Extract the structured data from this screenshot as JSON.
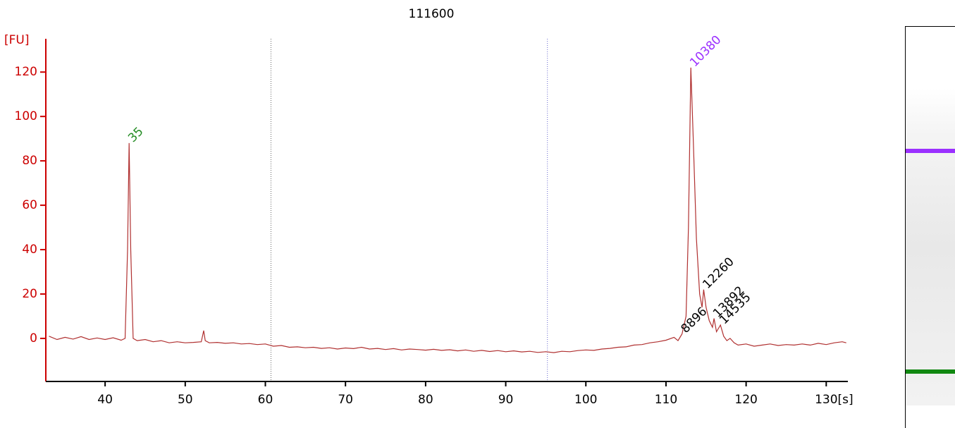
{
  "chart_data": {
    "type": "line",
    "title": "111600",
    "ylabel": "[FU]",
    "xlabel": "[s]",
    "color": "#b03030",
    "axis_color": "#cc0000",
    "xlim": [
      32.6,
      132.7
    ],
    "ylim": [
      -19.4,
      135
    ],
    "xticks": [
      40,
      50,
      60,
      70,
      80,
      90,
      100,
      110,
      120,
      130
    ],
    "yticks": [
      0,
      20,
      40,
      60,
      80,
      100,
      120
    ],
    "markers": [
      {
        "x": 60.7,
        "color": "#666666"
      },
      {
        "x": 95.2,
        "color": "#6a6ad0"
      }
    ],
    "x": [
      33,
      34,
      35,
      36,
      37,
      38,
      39,
      40,
      41,
      42,
      42.5,
      42.8,
      43,
      43.2,
      43.5,
      44,
      45,
      46,
      47,
      48,
      49,
      50,
      51,
      52,
      52.3,
      52.5,
      53,
      54,
      55,
      56,
      57,
      58,
      59,
      60,
      61,
      62,
      63,
      64,
      65,
      66,
      67,
      68,
      69,
      70,
      71,
      72,
      73,
      74,
      75,
      76,
      77,
      78,
      79,
      80,
      81,
      82,
      83,
      84,
      85,
      86,
      87,
      88,
      89,
      90,
      91,
      92,
      93,
      94,
      95,
      96,
      97,
      98,
      99,
      100,
      101,
      102,
      103,
      104,
      105,
      106,
      107,
      108,
      109,
      110,
      111,
      111.5,
      112,
      112.5,
      112.8,
      113.1,
      113.4,
      113.8,
      114.2,
      114.5,
      114.7,
      115,
      115.4,
      115.8,
      116,
      116.3,
      116.8,
      117.2,
      117.6,
      118,
      118.5,
      119,
      120,
      121,
      122,
      123,
      124,
      125,
      126,
      127,
      128,
      129,
      130,
      131,
      132,
      132.5
    ],
    "values": [
      1,
      -0.5,
      0.5,
      -0.3,
      0.8,
      -0.5,
      0.2,
      -0.5,
      0.3,
      -0.8,
      0,
      40,
      88,
      40,
      0,
      -1,
      -0.5,
      -1.5,
      -1,
      -2,
      -1.5,
      -2,
      -1.8,
      -1.5,
      3.5,
      -1,
      -2,
      -1.8,
      -2.2,
      -2,
      -2.5,
      -2.3,
      -2.8,
      -2.5,
      -3.5,
      -3.2,
      -4,
      -3.8,
      -4.2,
      -4,
      -4.5,
      -4.2,
      -4.8,
      -4.3,
      -4.6,
      -4,
      -4.8,
      -4.5,
      -5,
      -4.6,
      -5.2,
      -4.8,
      -5,
      -5.3,
      -4.9,
      -5.4,
      -5.1,
      -5.6,
      -5.2,
      -5.8,
      -5.4,
      -5.9,
      -5.5,
      -6,
      -5.6,
      -6.1,
      -5.8,
      -6.3,
      -6,
      -6.4,
      -5.8,
      -6,
      -5.5,
      -5.2,
      -5.4,
      -4.8,
      -4.5,
      -4,
      -3.8,
      -3,
      -2.8,
      -2,
      -1.5,
      -0.8,
      0.5,
      -1,
      2,
      10,
      50,
      122,
      90,
      45,
      20,
      14,
      22,
      14,
      8,
      5,
      9,
      3,
      6,
      1,
      -1,
      0,
      -2,
      -3,
      -2.5,
      -3.5,
      -3,
      -2.5,
      -3.2,
      -2.8,
      -3,
      -2.5,
      -3,
      -2.2,
      -2.8,
      -2,
      -1.5,
      -2
    ],
    "peak_labels": [
      {
        "text": "35",
        "x": 43,
        "y": 88,
        "color": "#228b22"
      },
      {
        "text": "10380",
        "x": 113.1,
        "y": 122,
        "color": "#9b30ff"
      },
      {
        "text": "8896",
        "x": 112.0,
        "y": 2,
        "color": "#000000"
      },
      {
        "text": "12260",
        "x": 114.7,
        "y": 22,
        "color": "#000000"
      },
      {
        "text": "13892",
        "x": 116.0,
        "y": 9,
        "color": "#000000"
      },
      {
        "text": "14535",
        "x": 116.8,
        "y": 6,
        "color": "#000000"
      }
    ]
  }
}
